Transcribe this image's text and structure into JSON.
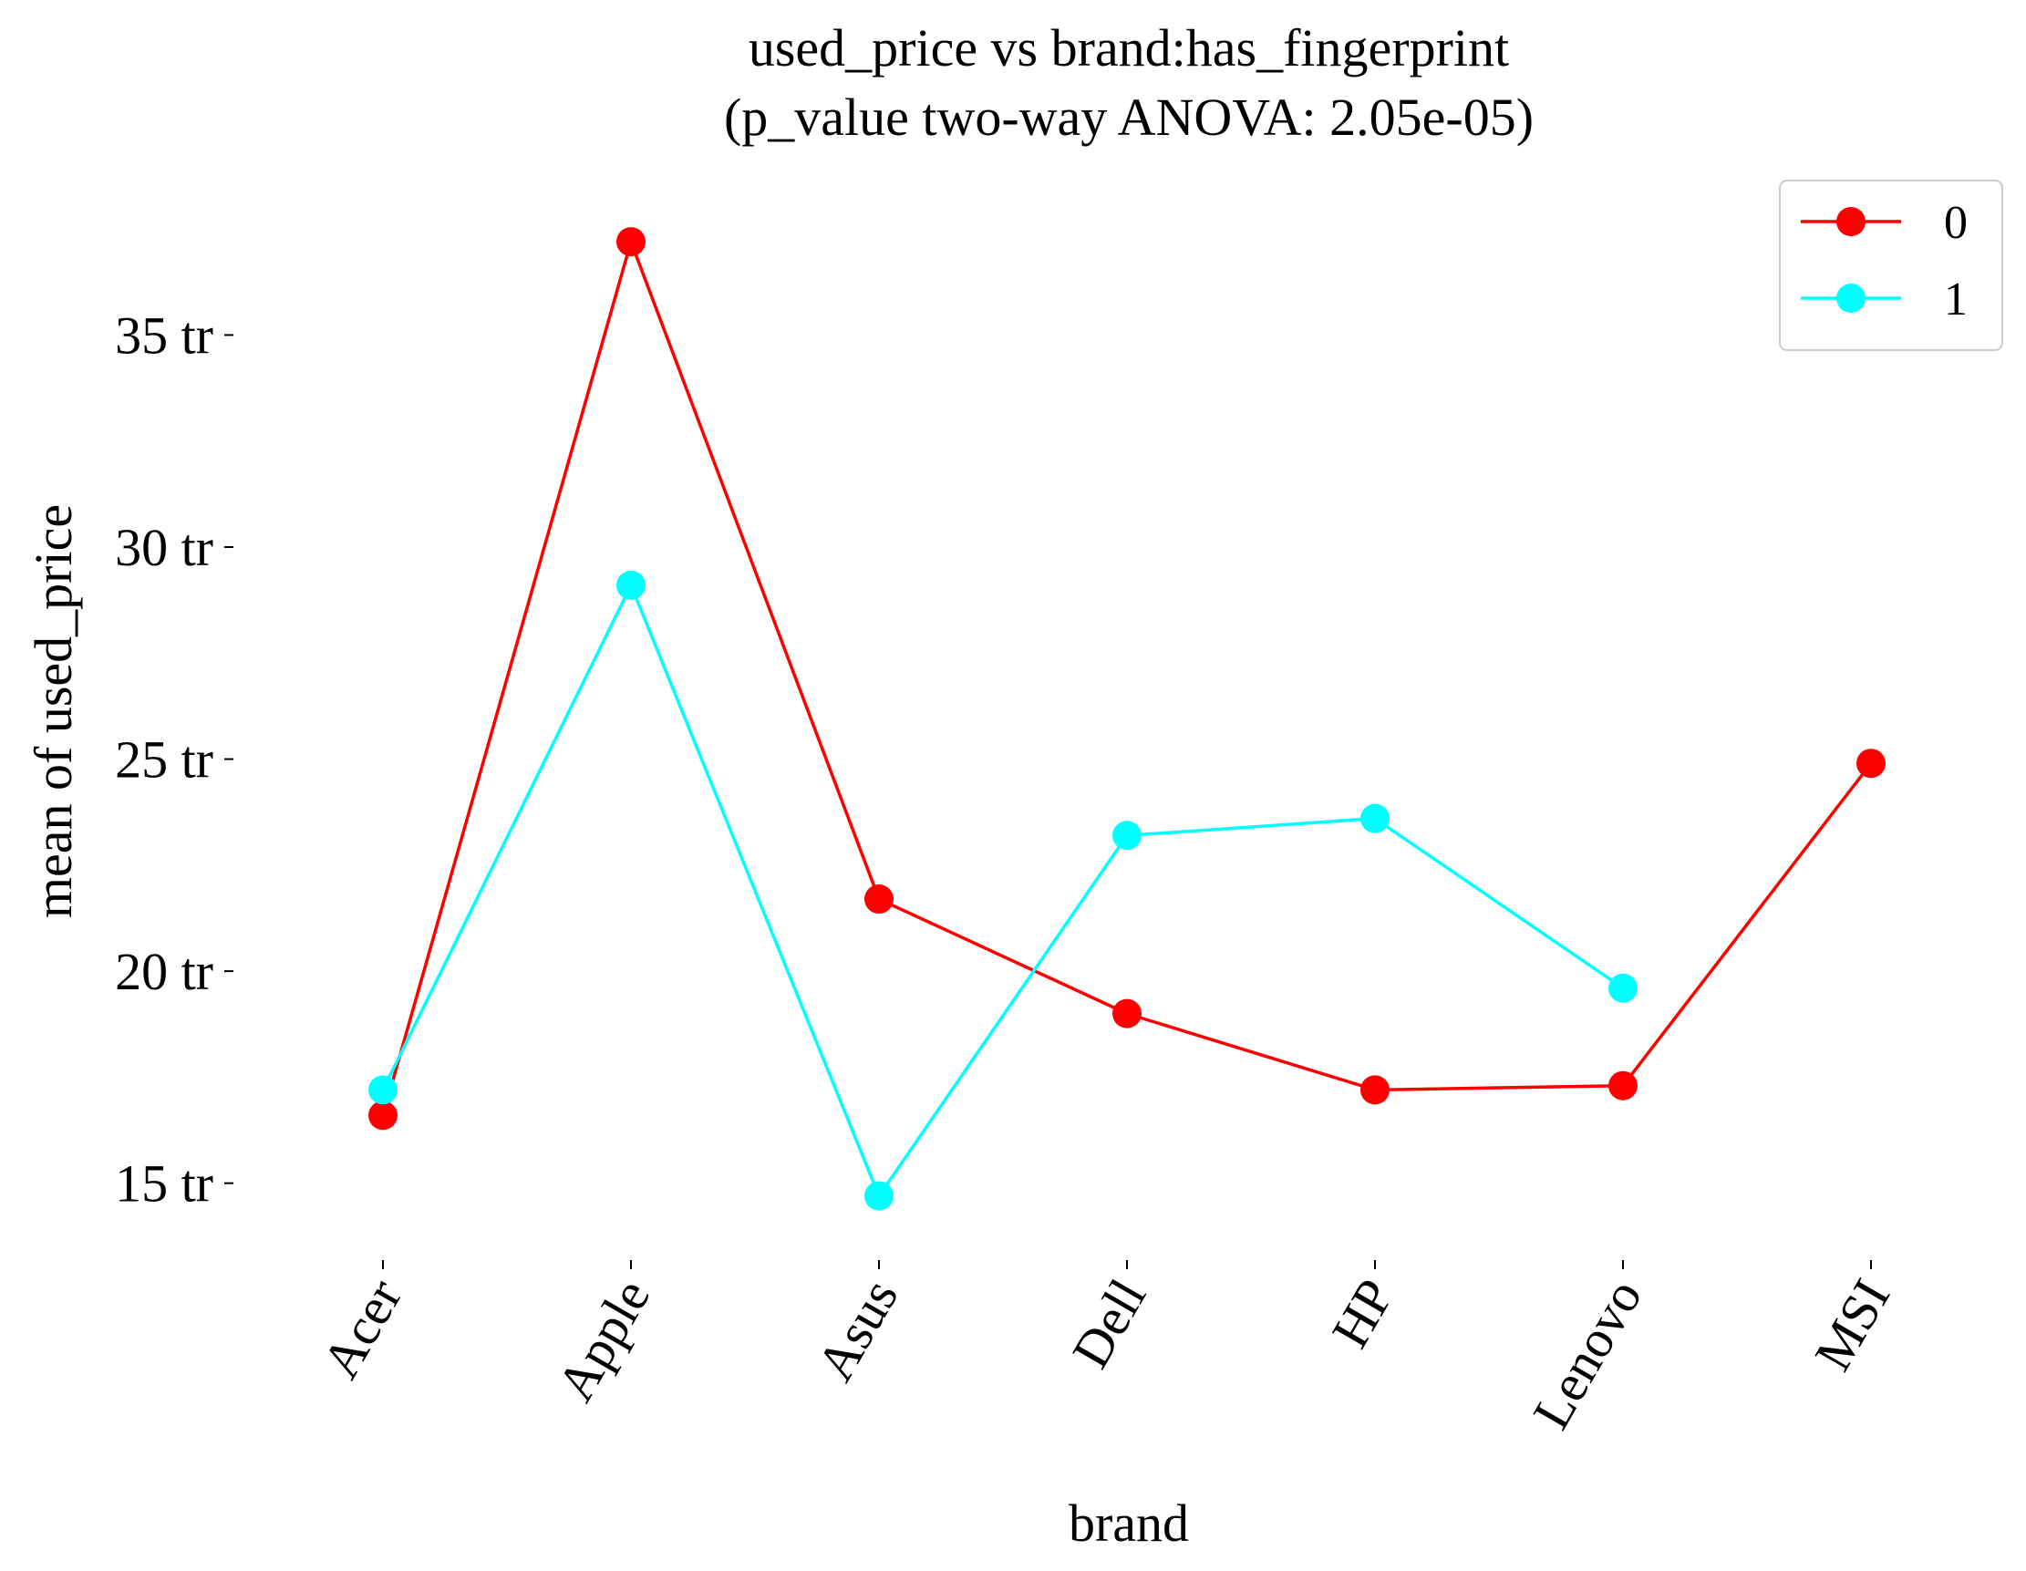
{
  "chart_data": {
    "type": "line",
    "title": "used_price vs brand:has_fingerprint",
    "subtitle": "(p_value two-way ANOVA: 2.05e-05)",
    "xlabel": "brand",
    "ylabel": "mean of used_price",
    "categories": [
      "Acer",
      "Apple",
      "Asus",
      "Dell",
      "HP",
      "Lenovo",
      "MSI"
    ],
    "yticks": [
      {
        "value": 15,
        "label": "15 tr"
      },
      {
        "value": 20,
        "label": "20 tr"
      },
      {
        "value": 25,
        "label": "25 tr"
      },
      {
        "value": 30,
        "label": "30 tr"
      },
      {
        "value": 35,
        "label": "35 tr"
      }
    ],
    "ylim": [
      12.8,
      38.6
    ],
    "grid": false,
    "legend_position": "top-right",
    "series": [
      {
        "name": "0",
        "color": "#ff0000",
        "values": [
          16.6,
          37.2,
          21.7,
          19.0,
          17.2,
          17.3,
          24.9
        ]
      },
      {
        "name": "1",
        "color": "#00ffff",
        "values": [
          17.2,
          29.1,
          14.7,
          23.2,
          23.6,
          19.6,
          null
        ]
      }
    ]
  }
}
